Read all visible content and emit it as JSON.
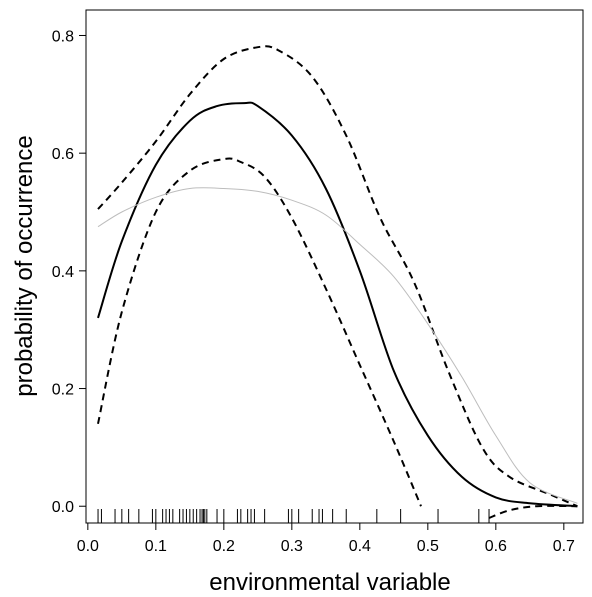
{
  "chart_data": {
    "type": "line",
    "xlabel": "environmental variable",
    "ylabel": "probability of occurrence",
    "xlim": [
      -0.0027,
      0.7282
    ],
    "ylim": [
      -0.0285,
      0.8433
    ],
    "x_ticks": [
      "0.0",
      "0.1",
      "0.2",
      "0.3",
      "0.4",
      "0.5",
      "0.6",
      "0.7"
    ],
    "x_tick_values": [
      0.0,
      0.1,
      0.2,
      0.3,
      0.4,
      0.5,
      0.6,
      0.7
    ],
    "y_ticks": [
      "0.0",
      "0.2",
      "0.4",
      "0.6",
      "0.8"
    ],
    "y_tick_values": [
      0.0,
      0.2,
      0.4,
      0.6,
      0.8
    ],
    "grid": false,
    "series": [
      {
        "style": "solid",
        "color": "#000000",
        "points": [
          [
            0.015,
            0.32
          ],
          [
            0.05,
            0.45
          ],
          [
            0.1,
            0.58
          ],
          [
            0.15,
            0.655
          ],
          [
            0.19,
            0.68
          ],
          [
            0.23,
            0.685
          ],
          [
            0.25,
            0.68
          ],
          [
            0.3,
            0.63
          ],
          [
            0.35,
            0.54
          ],
          [
            0.4,
            0.4
          ],
          [
            0.45,
            0.23
          ],
          [
            0.5,
            0.12
          ],
          [
            0.55,
            0.05
          ],
          [
            0.6,
            0.015
          ],
          [
            0.65,
            0.005
          ],
          [
            0.72,
            0.0
          ]
        ]
      },
      {
        "style": "dashed",
        "color": "#000000",
        "points": [
          [
            0.015,
            0.505
          ],
          [
            0.05,
            0.55
          ],
          [
            0.1,
            0.62
          ],
          [
            0.15,
            0.7
          ],
          [
            0.2,
            0.76
          ],
          [
            0.25,
            0.78
          ],
          [
            0.28,
            0.775
          ],
          [
            0.33,
            0.73
          ],
          [
            0.38,
            0.63
          ],
          [
            0.43,
            0.49
          ],
          [
            0.48,
            0.38
          ],
          [
            0.53,
            0.23
          ],
          [
            0.58,
            0.1
          ],
          [
            0.62,
            0.05
          ],
          [
            0.68,
            0.02
          ],
          [
            0.72,
            0.0
          ]
        ]
      },
      {
        "style": "dashed",
        "color": "#000000",
        "points": [
          [
            0.015,
            0.14
          ],
          [
            0.05,
            0.33
          ],
          [
            0.1,
            0.5
          ],
          [
            0.15,
            0.57
          ],
          [
            0.2,
            0.59
          ],
          [
            0.225,
            0.585
          ],
          [
            0.26,
            0.56
          ],
          [
            0.3,
            0.49
          ],
          [
            0.35,
            0.37
          ],
          [
            0.4,
            0.24
          ],
          [
            0.45,
            0.11
          ],
          [
            0.49,
            0.0
          ]
        ]
      },
      {
        "style": "dashed",
        "color": "#000000",
        "points": [
          [
            0.59,
            -0.02
          ],
          [
            0.62,
            -0.007
          ],
          [
            0.66,
            0.0
          ],
          [
            0.72,
            0.0
          ]
        ]
      },
      {
        "style": "solid",
        "color": "#bdbdbd",
        "points": [
          [
            0.015,
            0.475
          ],
          [
            0.05,
            0.5
          ],
          [
            0.1,
            0.525
          ],
          [
            0.15,
            0.54
          ],
          [
            0.2,
            0.54
          ],
          [
            0.25,
            0.535
          ],
          [
            0.3,
            0.52
          ],
          [
            0.35,
            0.495
          ],
          [
            0.4,
            0.445
          ],
          [
            0.45,
            0.39
          ],
          [
            0.5,
            0.31
          ],
          [
            0.55,
            0.22
          ],
          [
            0.6,
            0.12
          ],
          [
            0.65,
            0.04
          ],
          [
            0.72,
            0.005
          ]
        ]
      }
    ],
    "rug": [
      0.015,
      0.02,
      0.04,
      0.05,
      0.06,
      0.075,
      0.095,
      0.1,
      0.11,
      0.115,
      0.12,
      0.125,
      0.135,
      0.14,
      0.145,
      0.15,
      0.155,
      0.16,
      0.165,
      0.168,
      0.17,
      0.172,
      0.175,
      0.19,
      0.2,
      0.22,
      0.225,
      0.235,
      0.24,
      0.245,
      0.26,
      0.295,
      0.3,
      0.31,
      0.33,
      0.34,
      0.345,
      0.36,
      0.38,
      0.425,
      0.46,
      0.515,
      0.575,
      0.59
    ]
  }
}
